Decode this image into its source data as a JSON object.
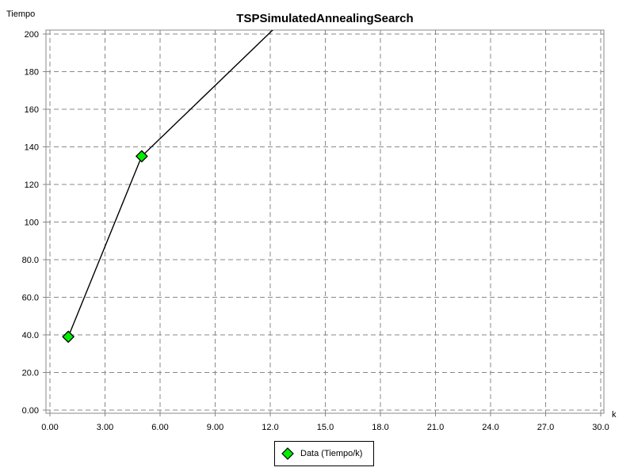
{
  "chart_data": {
    "type": "line",
    "title": "TSPSimulatedAnnealingSearch",
    "xlabel": "k",
    "ylabel": "Tiempo",
    "xlim": [
      0,
      30
    ],
    "ylim": [
      0,
      200
    ],
    "x_ticks": [
      "0.00",
      "3.00",
      "6.00",
      "9.00",
      "12.0",
      "15.0",
      "18.0",
      "21.0",
      "24.0",
      "27.0",
      "30.0"
    ],
    "y_ticks": [
      "0.00",
      "20.0",
      "40.0",
      "60.0",
      "80.0",
      "100",
      "120",
      "140",
      "160",
      "180",
      "200"
    ],
    "grid": true,
    "legend_position": "bottom",
    "series": [
      {
        "name": "Data (Tiempo/k)",
        "color": "#00ee00",
        "line_color": "#000000",
        "marker": "diamond",
        "x": [
          1,
          5,
          13.5
        ],
        "y": [
          39,
          135,
          215
        ],
        "marked": [
          true,
          true,
          false
        ]
      }
    ]
  }
}
